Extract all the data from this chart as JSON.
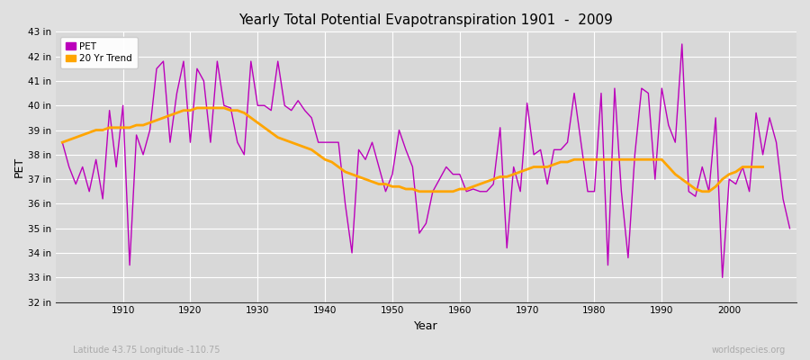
{
  "title": "Yearly Total Potential Evapotranspiration 1901  -  2009",
  "xlabel": "Year",
  "ylabel": "PET",
  "subtitle_left": "Latitude 43.75 Longitude -110.75",
  "subtitle_right": "worldspecies.org",
  "background_color": "#e0e0e0",
  "plot_bg_color": "#d8d8d8",
  "line_color_pet": "#bb00bb",
  "line_color_trend": "#ffa500",
  "ylim": [
    32,
    43
  ],
  "yticks": [
    32,
    33,
    34,
    35,
    36,
    37,
    38,
    39,
    40,
    41,
    42,
    43
  ],
  "ytick_labels": [
    "32 in",
    "33 in",
    "34 in",
    "35 in",
    "36 in",
    "37 in",
    "38 in",
    "39 in",
    "40 in",
    "41 in",
    "42 in",
    "43 in"
  ],
  "xlim": [
    1900,
    2010
  ],
  "xticks": [
    1910,
    1920,
    1930,
    1940,
    1950,
    1960,
    1970,
    1980,
    1990,
    2000
  ],
  "years": [
    1901,
    1902,
    1903,
    1904,
    1905,
    1906,
    1907,
    1908,
    1909,
    1910,
    1911,
    1912,
    1913,
    1914,
    1915,
    1916,
    1917,
    1918,
    1919,
    1920,
    1921,
    1922,
    1923,
    1924,
    1925,
    1926,
    1927,
    1928,
    1929,
    1930,
    1931,
    1932,
    1933,
    1934,
    1935,
    1936,
    1937,
    1938,
    1939,
    1940,
    1941,
    1942,
    1943,
    1944,
    1945,
    1946,
    1947,
    1948,
    1949,
    1950,
    1951,
    1952,
    1953,
    1954,
    1955,
    1956,
    1957,
    1958,
    1959,
    1960,
    1961,
    1962,
    1963,
    1964,
    1965,
    1966,
    1967,
    1968,
    1969,
    1970,
    1971,
    1972,
    1973,
    1974,
    1975,
    1976,
    1977,
    1978,
    1979,
    1980,
    1981,
    1982,
    1983,
    1984,
    1985,
    1986,
    1987,
    1988,
    1989,
    1990,
    1991,
    1992,
    1993,
    1994,
    1995,
    1996,
    1997,
    1998,
    1999,
    2000,
    2001,
    2002,
    2003,
    2004,
    2005,
    2006,
    2007,
    2008,
    2009
  ],
  "pet": [
    38.5,
    37.5,
    36.8,
    37.5,
    36.5,
    37.8,
    36.2,
    39.8,
    37.5,
    40.0,
    33.5,
    38.8,
    38.0,
    39.0,
    41.5,
    41.8,
    38.5,
    40.5,
    41.8,
    38.5,
    41.5,
    41.0,
    38.5,
    41.8,
    40.0,
    39.9,
    38.5,
    38.0,
    41.8,
    40.0,
    40.0,
    39.8,
    41.8,
    40.0,
    39.8,
    40.2,
    39.8,
    39.5,
    38.5,
    38.5,
    38.5,
    38.5,
    36.0,
    34.0,
    38.2,
    37.8,
    38.5,
    37.5,
    36.5,
    37.2,
    39.0,
    38.2,
    37.5,
    34.8,
    35.2,
    36.5,
    37.0,
    37.5,
    37.2,
    37.2,
    36.5,
    36.6,
    36.5,
    36.5,
    36.8,
    39.1,
    34.2,
    37.5,
    36.5,
    40.1,
    38.0,
    38.2,
    36.8,
    38.2,
    38.2,
    38.5,
    40.5,
    38.5,
    36.5,
    36.5,
    40.5,
    33.5,
    40.7,
    36.5,
    33.8,
    38.0,
    40.7,
    40.5,
    37.0,
    40.7,
    39.2,
    38.5,
    42.5,
    36.5,
    36.3,
    37.5,
    36.5,
    39.5,
    33.0,
    37.0,
    36.8,
    37.5,
    36.5,
    39.7,
    38.0,
    39.5,
    38.5,
    36.2,
    35.0
  ],
  "trend": [
    38.5,
    38.6,
    38.7,
    38.8,
    38.9,
    39.0,
    39.0,
    39.1,
    39.1,
    39.1,
    39.1,
    39.2,
    39.2,
    39.3,
    39.4,
    39.5,
    39.6,
    39.7,
    39.8,
    39.8,
    39.9,
    39.9,
    39.9,
    39.9,
    39.9,
    39.8,
    39.8,
    39.7,
    39.5,
    39.3,
    39.1,
    38.9,
    38.7,
    38.6,
    38.5,
    38.4,
    38.3,
    38.2,
    38.0,
    37.8,
    37.7,
    37.5,
    37.3,
    37.2,
    37.1,
    37.0,
    36.9,
    36.8,
    36.8,
    36.7,
    36.7,
    36.6,
    36.6,
    36.5,
    36.5,
    36.5,
    36.5,
    36.5,
    36.5,
    36.6,
    36.6,
    36.7,
    36.8,
    36.9,
    37.0,
    37.1,
    37.1,
    37.2,
    37.3,
    37.4,
    37.5,
    37.5,
    37.5,
    37.6,
    37.7,
    37.7,
    37.8,
    37.8,
    37.8,
    37.8,
    37.8,
    37.8,
    37.8,
    37.8,
    37.8,
    37.8,
    37.8,
    37.8,
    37.8,
    37.8,
    37.5,
    37.2,
    37.0,
    36.8,
    36.6,
    36.5,
    36.5,
    36.7,
    37.0,
    37.2,
    37.3,
    37.5,
    37.5,
    37.5,
    37.5,
    null,
    null,
    null,
    null
  ]
}
